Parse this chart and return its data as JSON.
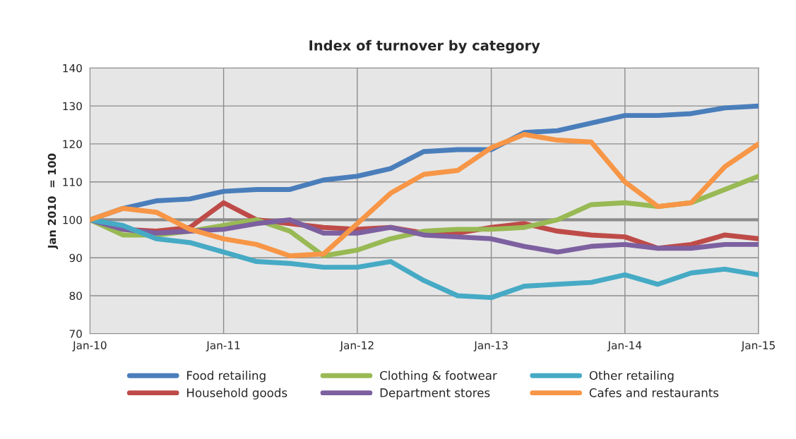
{
  "chart_data": {
    "type": "line",
    "title": "Index of turnover by category",
    "ylabel": "Jan 2010  = 100",
    "x": [
      "2010-01",
      "2010-04",
      "2010-07",
      "2010-10",
      "2011-01",
      "2011-04",
      "2011-07",
      "2011-10",
      "2012-01",
      "2012-04",
      "2012-07",
      "2012-10",
      "2013-01",
      "2013-04",
      "2013-07",
      "2013-10",
      "2014-01",
      "2014-04",
      "2014-07",
      "2014-10",
      "2015-01"
    ],
    "series": [
      {
        "name": "Food retailing",
        "color": "#4a7ebb",
        "values": [
          100,
          103,
          105,
          105.5,
          107.5,
          108,
          108,
          110.5,
          111.5,
          113.5,
          118,
          118.5,
          118.5,
          123,
          123.5,
          125.5,
          127.5,
          127.5,
          128,
          129.5,
          130
        ]
      },
      {
        "name": "Household goods",
        "color": "#be4b48",
        "values": [
          100,
          97.5,
          97,
          98,
          104.5,
          100,
          99,
          98,
          97.5,
          98,
          96.5,
          96.5,
          98,
          99,
          97,
          96,
          95.5,
          92.5,
          93.5,
          96,
          95
        ]
      },
      {
        "name": "Clothing & footwear",
        "color": "#98b954",
        "values": [
          100,
          96,
          96,
          97,
          98.5,
          100,
          97,
          90.5,
          92,
          95,
          97,
          97.5,
          97.5,
          98,
          100,
          104,
          104.5,
          103.5,
          104.5,
          108,
          111.5
        ]
      },
      {
        "name": "Department stores",
        "color": "#7d60a0",
        "values": [
          100,
          97.5,
          96.5,
          97,
          97.5,
          99,
          100,
          96.5,
          96.5,
          98,
          96,
          95.5,
          95,
          93,
          91.5,
          93,
          93.5,
          92.5,
          92.5,
          93.5,
          93.5
        ]
      },
      {
        "name": "Other retailing",
        "color": "#46aac5",
        "values": [
          100,
          98.5,
          95,
          94,
          91.5,
          89,
          88.5,
          87.5,
          87.5,
          89,
          84,
          80,
          79.5,
          82.5,
          83,
          83.5,
          85.5,
          83,
          86,
          87,
          85.5
        ]
      },
      {
        "name": "Cafes and restaurants",
        "color": "#f79646",
        "values": [
          100,
          103,
          102,
          97.5,
          95,
          93.5,
          90.5,
          91,
          99,
          107,
          112,
          113,
          119,
          122.5,
          121,
          120.5,
          110,
          103.5,
          104.5,
          114,
          120
        ]
      }
    ],
    "xlim": [
      "2010-01",
      "2015-01"
    ],
    "xticks": [
      {
        "value": "2010-01",
        "label": "Jan-10"
      },
      {
        "value": "2011-01",
        "label": "Jan-11"
      },
      {
        "value": "2012-01",
        "label": "Jan-12"
      },
      {
        "value": "2013-01",
        "label": "Jan-13"
      },
      {
        "value": "2014-01",
        "label": "Jan-14"
      },
      {
        "value": "2015-01",
        "label": "Jan-15"
      }
    ],
    "ylim": [
      70,
      140
    ],
    "yticks": [
      70,
      80,
      90,
      100,
      110,
      120,
      130,
      140
    ],
    "ref_lines": [
      {
        "axis": "y",
        "value": 100,
        "color": "#8c8c8c"
      }
    ],
    "grid": true,
    "legend": "bottom",
    "marker": "none",
    "line_style": "solid"
  }
}
